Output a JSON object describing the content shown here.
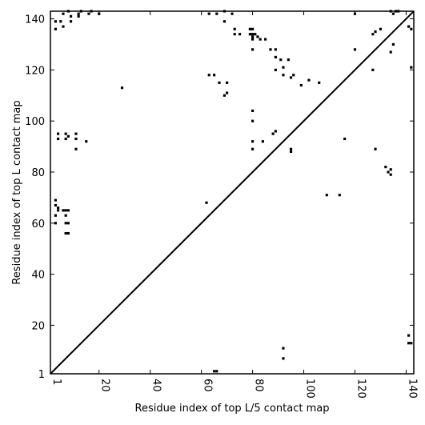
{
  "chart_data": {
    "type": "scatter",
    "title": "",
    "xlabel": "Residue index of top L/5 contact map",
    "ylabel": "Residue index of top L contact map",
    "xlim": [
      1,
      143
    ],
    "ylim": [
      1,
      143
    ],
    "x_ticks": [
      1,
      20,
      40,
      60,
      80,
      100,
      120,
      140
    ],
    "y_ticks": [
      1,
      20,
      40,
      60,
      80,
      100,
      120,
      140
    ],
    "grid": false,
    "diagonal_line": true,
    "marker_color": "#000000",
    "series": [
      {
        "points": [
          [
            3,
            136
          ],
          [
            3,
            139
          ],
          [
            5,
            139
          ],
          [
            6,
            142
          ],
          [
            6,
            137
          ],
          [
            8,
            143
          ],
          [
            9,
            141
          ],
          [
            9,
            139
          ],
          [
            12,
            141
          ],
          [
            12,
            142
          ],
          [
            13,
            143
          ],
          [
            16,
            142
          ],
          [
            17,
            143
          ],
          [
            20,
            142
          ],
          [
            63,
            142
          ],
          [
            66,
            142
          ],
          [
            69,
            143
          ],
          [
            69,
            139
          ],
          [
            72,
            142
          ],
          [
            73,
            136
          ],
          [
            73,
            134
          ],
          [
            75,
            134
          ],
          [
            79,
            136
          ],
          [
            80,
            136
          ],
          [
            79,
            134
          ],
          [
            80,
            134
          ],
          [
            81,
            134
          ],
          [
            80,
            133
          ],
          [
            82,
            133
          ],
          [
            80,
            132
          ],
          [
            83,
            132
          ],
          [
            85,
            132
          ],
          [
            87,
            128
          ],
          [
            89,
            128
          ],
          [
            80,
            128
          ],
          [
            89,
            125
          ],
          [
            89,
            120
          ],
          [
            91,
            124
          ],
          [
            94,
            124
          ],
          [
            92,
            121
          ],
          [
            92,
            118
          ],
          [
            95,
            117
          ],
          [
            96,
            118
          ],
          [
            99,
            114
          ],
          [
            102,
            116
          ],
          [
            106,
            115
          ],
          [
            63,
            118
          ],
          [
            65,
            118
          ],
          [
            67,
            115
          ],
          [
            69,
            110
          ],
          [
            70,
            111
          ],
          [
            70,
            115
          ],
          [
            120,
            128
          ],
          [
            120,
            142
          ],
          [
            127,
            134
          ],
          [
            128,
            135
          ],
          [
            130,
            136
          ],
          [
            127,
            120
          ],
          [
            134,
            127
          ],
          [
            135,
            130
          ],
          [
            137,
            143
          ],
          [
            136,
            143
          ],
          [
            135,
            142
          ],
          [
            134,
            143
          ],
          [
            141,
            137
          ],
          [
            142,
            136
          ],
          [
            142,
            121
          ],
          [
            128,
            89
          ],
          [
            132,
            82
          ],
          [
            133,
            80
          ],
          [
            134,
            81
          ],
          [
            134,
            79
          ],
          [
            80,
            104
          ],
          [
            80,
            100
          ],
          [
            80,
            92
          ],
          [
            80,
            89
          ],
          [
            84,
            92
          ],
          [
            88,
            95
          ],
          [
            89,
            96
          ],
          [
            95,
            89
          ],
          [
            95,
            88
          ],
          [
            109,
            71
          ],
          [
            114,
            71
          ],
          [
            116,
            93
          ],
          [
            29,
            113
          ],
          [
            62,
            68
          ],
          [
            4,
            95
          ],
          [
            4,
            93
          ],
          [
            7,
            95
          ],
          [
            7,
            93
          ],
          [
            8,
            94
          ],
          [
            11,
            95
          ],
          [
            11,
            93
          ],
          [
            11,
            89
          ],
          [
            15,
            92
          ],
          [
            3,
            69
          ],
          [
            3,
            67
          ],
          [
            4,
            66
          ],
          [
            4,
            65
          ],
          [
            3,
            63
          ],
          [
            3,
            60
          ],
          [
            6,
            65
          ],
          [
            7,
            65
          ],
          [
            8,
            65
          ],
          [
            7,
            63
          ],
          [
            7,
            60
          ],
          [
            8,
            60
          ],
          [
            7,
            56
          ],
          [
            8,
            56
          ],
          [
            92,
            11
          ],
          [
            92,
            7
          ],
          [
            65,
            2
          ],
          [
            66,
            2
          ],
          [
            141,
            16
          ],
          [
            141,
            13
          ],
          [
            142,
            13
          ]
        ]
      }
    ]
  }
}
